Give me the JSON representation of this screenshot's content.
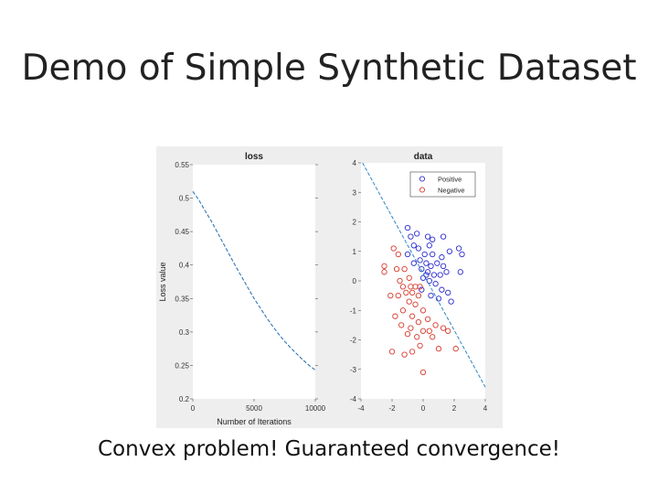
{
  "slide": {
    "title": "Demo of Simple Synthetic Dataset",
    "caption": "Convex problem! Guaranteed convergence!"
  },
  "colors": {
    "loss_line": "#2f76b8",
    "positive": "#2b2bd0",
    "negative": "#d83a2e",
    "boundary": "#2f86c8",
    "axes_bg": "#ffffff",
    "figure_bg": "#eeeeee"
  },
  "chart_data": [
    {
      "type": "line",
      "title": "loss",
      "xlabel": "Number of Iterations",
      "ylabel": "Loss value",
      "xlim": [
        0,
        10000
      ],
      "ylim": [
        0.2,
        0.55
      ],
      "xticks": [
        0,
        5000,
        10000
      ],
      "xtick_labels": [
        "0",
        "5000",
        "10000"
      ],
      "yticks": [
        0.2,
        0.25,
        0.3,
        0.35,
        0.4,
        0.45,
        0.5,
        0.55
      ],
      "ytick_labels": [
        "0.2",
        "0.25",
        "0.3",
        "0.35",
        "0.4",
        "0.45",
        "0.5",
        "0.55"
      ],
      "grid": false,
      "series": [
        {
          "x": [
            0,
            500,
            1000,
            1500,
            2000,
            2500,
            3000,
            3500,
            4000,
            4500,
            5000,
            5500,
            6000,
            6500,
            7000,
            7500,
            8000,
            8500,
            9000,
            9500,
            10000
          ],
          "values": [
            0.51,
            0.497,
            0.481,
            0.466,
            0.449,
            0.432,
            0.415,
            0.398,
            0.382,
            0.366,
            0.35,
            0.336,
            0.322,
            0.309,
            0.297,
            0.286,
            0.276,
            0.267,
            0.258,
            0.25,
            0.243
          ]
        }
      ]
    },
    {
      "type": "scatter",
      "title": "data",
      "xlim": [
        -4,
        4
      ],
      "ylim": [
        -4,
        4
      ],
      "xticks": [
        -4,
        -2,
        0,
        2,
        4
      ],
      "xtick_labels": [
        "-4",
        "-2",
        "0",
        "2",
        "4"
      ],
      "yticks": [
        -4,
        -3,
        -2,
        -1,
        0,
        1,
        2,
        3,
        4
      ],
      "ytick_labels": [
        "-4",
        "-3",
        "-2",
        "-1",
        "0",
        "1",
        "2",
        "3",
        "4"
      ],
      "grid": false,
      "legend": {
        "placement": "top-right",
        "entries": [
          "Positive",
          "Negative"
        ]
      },
      "series": [
        {
          "name": "Positive",
          "points": [
            [
              -1.0,
              1.8
            ],
            [
              -0.8,
              1.5
            ],
            [
              -0.4,
              1.6
            ],
            [
              0.3,
              1.5
            ],
            [
              -0.6,
              1.2
            ],
            [
              0.4,
              1.2
            ],
            [
              -0.3,
              1.1
            ],
            [
              0.1,
              0.9
            ],
            [
              0.6,
              0.9
            ],
            [
              1.2,
              0.8
            ],
            [
              1.7,
              1.0
            ],
            [
              2.3,
              1.1
            ],
            [
              2.5,
              0.9
            ],
            [
              -1.0,
              0.9
            ],
            [
              -0.6,
              0.6
            ],
            [
              -0.2,
              0.7
            ],
            [
              0.2,
              0.6
            ],
            [
              0.5,
              0.5
            ],
            [
              0.9,
              0.6
            ],
            [
              1.3,
              0.5
            ],
            [
              -0.1,
              0.4
            ],
            [
              0.3,
              0.3
            ],
            [
              0.7,
              0.2
            ],
            [
              1.1,
              0.2
            ],
            [
              1.5,
              0.3
            ],
            [
              2.4,
              0.3
            ],
            [
              0.0,
              0.1
            ],
            [
              0.4,
              0.0
            ],
            [
              0.8,
              -0.1
            ],
            [
              1.2,
              -0.3
            ],
            [
              1.6,
              -0.4
            ],
            [
              -0.1,
              -0.3
            ],
            [
              0.5,
              -0.5
            ],
            [
              1.0,
              -0.6
            ],
            [
              1.8,
              -0.7
            ],
            [
              1.3,
              1.5
            ],
            [
              0.6,
              1.4
            ],
            [
              0.2,
              0.2
            ]
          ]
        },
        {
          "name": "Negative",
          "points": [
            [
              -1.9,
              1.1
            ],
            [
              -1.6,
              0.9
            ],
            [
              -2.5,
              0.5
            ],
            [
              -1.7,
              0.4
            ],
            [
              -1.2,
              0.4
            ],
            [
              -2.5,
              0.3
            ],
            [
              -1.5,
              0.0
            ],
            [
              -0.9,
              0.1
            ],
            [
              -1.3,
              -0.2
            ],
            [
              -0.8,
              -0.2
            ],
            [
              -0.5,
              -0.2
            ],
            [
              -0.2,
              -0.2
            ],
            [
              -1.6,
              -0.5
            ],
            [
              -2.1,
              -0.5
            ],
            [
              -1.1,
              -0.4
            ],
            [
              -0.7,
              -0.4
            ],
            [
              -0.3,
              -0.5
            ],
            [
              -0.9,
              -0.7
            ],
            [
              -0.5,
              -0.8
            ],
            [
              0.0,
              -1.0
            ],
            [
              -1.3,
              -1.0
            ],
            [
              -1.8,
              -1.2
            ],
            [
              -0.7,
              -1.2
            ],
            [
              -0.3,
              -1.4
            ],
            [
              0.3,
              -1.3
            ],
            [
              0.8,
              -1.5
            ],
            [
              -1.4,
              -1.5
            ],
            [
              -0.8,
              -1.6
            ],
            [
              0.0,
              -1.7
            ],
            [
              0.4,
              -1.7
            ],
            [
              1.3,
              -1.6
            ],
            [
              1.6,
              -1.7
            ],
            [
              -1.0,
              -1.8
            ],
            [
              -0.4,
              -1.9
            ],
            [
              0.6,
              -1.9
            ],
            [
              -0.2,
              -2.2
            ],
            [
              1.0,
              -2.3
            ],
            [
              -1.2,
              -2.5
            ],
            [
              2.1,
              -2.3
            ],
            [
              -2.0,
              -2.4
            ],
            [
              0.0,
              -3.1
            ],
            [
              -0.7,
              -2.4
            ]
          ]
        },
        {
          "name": "",
          "type": "line",
          "style": "dashed",
          "x": [
            -3.9,
            4.0
          ],
          "values": [
            4.0,
            -3.6
          ]
        }
      ]
    }
  ]
}
